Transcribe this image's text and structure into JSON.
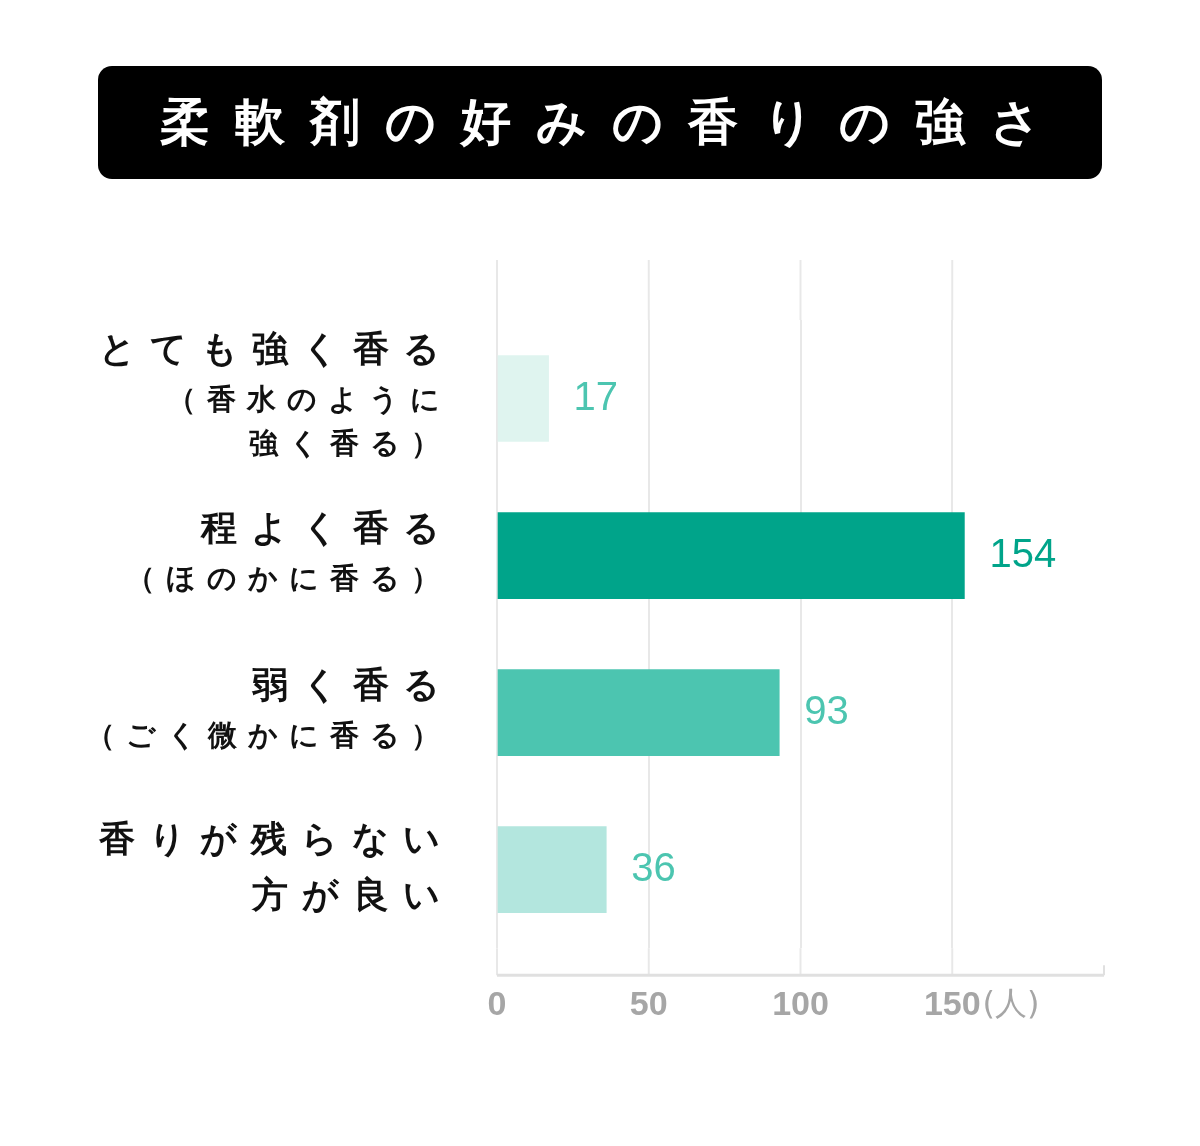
{
  "chart_data": {
    "type": "bar",
    "title": "柔軟剤の好みの香りの強さ",
    "orientation": "horizontal",
    "categories": [
      "とても強く香る（香水のように強く香る）",
      "程よく香る（ほのかに香る）",
      "弱く香る（ごく微かに香る）",
      "香りが残らない方が良い"
    ],
    "values": [
      17,
      154,
      93,
      36
    ],
    "colors": [
      "#dff4ef",
      "#00a48a",
      "#4cc5b0",
      "#b3e6de"
    ],
    "xlabel": "(人)",
    "xlim": [
      0,
      200
    ],
    "xticks": [
      0,
      50,
      100,
      150
    ],
    "grid": "x",
    "data_labels": true
  }
}
